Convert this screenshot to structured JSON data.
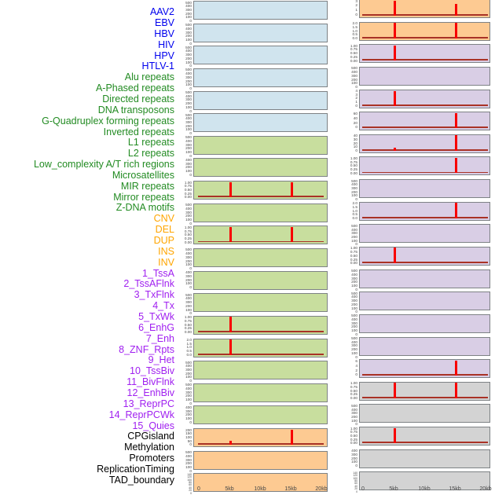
{
  "chart_data": {
    "type": "bar",
    "subtype": "genomic-feature-density-tracks",
    "layout": {
      "columns": 2,
      "order": "column-major",
      "left_column_features": "1-22",
      "right_column_features": "23-44",
      "grid": false,
      "legend": "none (labels colored by feature group)"
    },
    "x_axis": {
      "tick_labels": [
        "0",
        "5kb",
        "10kb",
        "15kb",
        "20kb"
      ],
      "tick_kb": [
        0,
        5,
        10,
        15,
        20
      ],
      "range_kb": [
        0,
        20
      ]
    },
    "spike_units": "fraction_of_panel_max_height",
    "palette": {
      "virus": {
        "label": "#0000EE",
        "panel": "#D0E4EE"
      },
      "repeat": {
        "label": "#228B22",
        "panel": "#C8DE9E"
      },
      "structural_variant": {
        "label": "#FFA500",
        "panel": "#FDCA92"
      },
      "chromatin_state": {
        "label": "#A020F0",
        "panel": "#D9CEE5"
      },
      "other": {
        "label": "#000000",
        "panel": "#D3D3D3"
      }
    },
    "spike_color": "#F80000",
    "baseline_color": "#A93226",
    "panel_border_color": "#7E8285",
    "features": [
      {
        "label": "AAV2",
        "group": "virus",
        "y_ticks": [
          "500",
          "400",
          "300",
          "200",
          "100",
          "0"
        ],
        "spikes": []
      },
      {
        "label": "EBV",
        "group": "virus",
        "y_ticks": [
          "500",
          "400",
          "300",
          "200",
          "100",
          "0"
        ],
        "spikes": []
      },
      {
        "label": "HBV",
        "group": "virus",
        "y_ticks": [
          "500",
          "400",
          "300",
          "200",
          "100",
          "0"
        ],
        "spikes": []
      },
      {
        "label": "HIV",
        "group": "virus",
        "y_ticks": [
          "500",
          "400",
          "300",
          "200",
          "100",
          "0"
        ],
        "spikes": []
      },
      {
        "label": "HPV",
        "group": "virus",
        "y_ticks": [
          "500",
          "400",
          "300",
          "200",
          "100",
          "0"
        ],
        "spikes": []
      },
      {
        "label": "HTLV-1",
        "group": "virus",
        "y_ticks": [
          "500",
          "400",
          "300",
          "200",
          "100",
          "0"
        ],
        "spikes": []
      },
      {
        "label": "Alu repeats",
        "group": "repeat",
        "y_ticks": [
          "500",
          "400",
          "300",
          "200",
          "100",
          "0"
        ],
        "spikes": []
      },
      {
        "label": "A-Phased repeats",
        "group": "repeat",
        "y_ticks": [
          "400",
          "300",
          "200",
          "100",
          "0"
        ],
        "spikes": []
      },
      {
        "label": "Directed repeats",
        "group": "repeat",
        "y_ticks": [
          "1.00",
          "0.75",
          "0.50",
          "0.25",
          "0.00"
        ],
        "spikes": [
          {
            "kb": 5,
            "h": 1.0
          },
          {
            "kb": 15,
            "h": 1.0
          }
        ]
      },
      {
        "label": "DNA transposons",
        "group": "repeat",
        "y_ticks": [
          "500",
          "400",
          "300",
          "200",
          "100",
          "0"
        ],
        "spikes": []
      },
      {
        "label": "G-Quadruplex forming repeats",
        "group": "repeat",
        "y_ticks": [
          "1.00",
          "0.75",
          "0.50",
          "0.25",
          "0.00"
        ],
        "spikes": [
          {
            "kb": 5,
            "h": 1.0
          },
          {
            "kb": 15,
            "h": 1.0
          }
        ]
      },
      {
        "label": "Inverted repeats",
        "group": "repeat",
        "y_ticks": [
          "500",
          "400",
          "300",
          "200",
          "100",
          "0"
        ],
        "spikes": []
      },
      {
        "label": "L1 repeats",
        "group": "repeat",
        "y_ticks": [
          "400",
          "300",
          "200",
          "100",
          "0"
        ],
        "spikes": []
      },
      {
        "label": "L2 repeats",
        "group": "repeat",
        "y_ticks": [
          "500",
          "400",
          "300",
          "200",
          "100",
          "0"
        ],
        "spikes": []
      },
      {
        "label": "Low_complexity A/T rich regions",
        "group": "repeat",
        "y_ticks": [
          "1.00",
          "0.75",
          "0.50",
          "0.25",
          "0.00"
        ],
        "spikes": [
          {
            "kb": 5,
            "h": 1.0
          }
        ]
      },
      {
        "label": "Microsatellites",
        "group": "repeat",
        "y_ticks": [
          "2.0",
          "1.5",
          "1.0",
          "0.5",
          "0.0"
        ],
        "spikes": [
          {
            "kb": 5,
            "h": 1.0
          }
        ]
      },
      {
        "label": "MIR repeats",
        "group": "repeat",
        "y_ticks": [
          "500",
          "400",
          "300",
          "200",
          "100",
          "0"
        ],
        "spikes": []
      },
      {
        "label": "Mirror repeats",
        "group": "repeat",
        "y_ticks": [
          "500",
          "400",
          "300",
          "200",
          "100",
          "0"
        ],
        "spikes": []
      },
      {
        "label": "Z-DNA motifs",
        "group": "repeat",
        "y_ticks": [
          "400",
          "300",
          "200",
          "100",
          "0"
        ],
        "spikes": []
      },
      {
        "label": "CNV",
        "group": "structural_variant",
        "y_ticks": [
          "200",
          "150",
          "100",
          "50",
          "0"
        ],
        "spikes": [
          {
            "kb": 5,
            "h": 0.15
          },
          {
            "kb": 15,
            "h": 0.95
          }
        ]
      },
      {
        "label": "DEL",
        "group": "structural_variant",
        "y_ticks": [
          "500",
          "400",
          "300",
          "200",
          "100",
          "0"
        ],
        "spikes": []
      },
      {
        "label": "DUP",
        "group": "structural_variant",
        "y_ticks": [
          "140",
          "120",
          "100",
          "80",
          "60",
          "40",
          "20",
          "0"
        ],
        "spikes": []
      },
      {
        "label": "INS",
        "group": "structural_variant",
        "y_ticks": [
          "3",
          "2",
          "1",
          "0"
        ],
        "spikes": [
          {
            "kb": 5,
            "h": 1.0
          },
          {
            "kb": 15,
            "h": 0.72
          }
        ]
      },
      {
        "label": "INV",
        "group": "structural_variant",
        "y_ticks": [
          "2.0",
          "1.5",
          "1.0",
          "0.5",
          "0.0"
        ],
        "spikes": [
          {
            "kb": 5,
            "h": 1.0
          },
          {
            "kb": 15,
            "h": 1.0
          }
        ]
      },
      {
        "label": "1_TssA",
        "group": "chromatin_state",
        "y_ticks": [
          "1.00",
          "0.75",
          "0.50",
          "0.25",
          "0.00"
        ],
        "spikes": [
          {
            "kb": 5,
            "h": 1.0
          }
        ]
      },
      {
        "label": "2_TssAFlnk",
        "group": "chromatin_state",
        "y_ticks": [
          "500",
          "400",
          "300",
          "200",
          "100",
          "0"
        ],
        "spikes": []
      },
      {
        "label": "3_TxFlnk",
        "group": "chromatin_state",
        "y_ticks": [
          "4",
          "3",
          "2",
          "1",
          "0"
        ],
        "spikes": [
          {
            "kb": 5,
            "h": 0.95
          }
        ]
      },
      {
        "label": "4_Tx",
        "group": "chromatin_state",
        "y_ticks": [
          "60",
          "40",
          "20",
          "0"
        ],
        "spikes": [
          {
            "kb": 15,
            "h": 1.0
          }
        ]
      },
      {
        "label": "5_TxWk",
        "group": "chromatin_state",
        "y_ticks": [
          "40",
          "30",
          "20",
          "10",
          "0"
        ],
        "spikes": [
          {
            "kb": 5,
            "h": 0.1
          },
          {
            "kb": 15,
            "h": 1.0
          }
        ]
      },
      {
        "label": "6_EnhG",
        "group": "chromatin_state",
        "y_ticks": [
          "1.00",
          "0.75",
          "0.50",
          "0.25",
          "0.00"
        ],
        "spikes": [
          {
            "kb": 15,
            "h": 1.0
          }
        ]
      },
      {
        "label": "7_Enh",
        "group": "chromatin_state",
        "y_ticks": [
          "500",
          "400",
          "300",
          "200",
          "100",
          "0"
        ],
        "spikes": []
      },
      {
        "label": "8_ZNF_Rpts",
        "group": "chromatin_state",
        "y_ticks": [
          "2.0",
          "1.5",
          "1.0",
          "0.5",
          "0.0"
        ],
        "spikes": [
          {
            "kb": 15,
            "h": 1.0
          }
        ]
      },
      {
        "label": "9_Het",
        "group": "chromatin_state",
        "y_ticks": [
          "500",
          "400",
          "300",
          "200",
          "100",
          "0"
        ],
        "spikes": []
      },
      {
        "label": "10_TssBiv",
        "group": "chromatin_state",
        "y_ticks": [
          "1.00",
          "0.75",
          "0.50",
          "0.25",
          "0.00"
        ],
        "spikes": [
          {
            "kb": 5,
            "h": 1.0
          }
        ]
      },
      {
        "label": "11_BivFlnk",
        "group": "chromatin_state",
        "y_ticks": [
          "500",
          "400",
          "300",
          "200",
          "100",
          "0"
        ],
        "spikes": []
      },
      {
        "label": "12_EnhBiv",
        "group": "chromatin_state",
        "y_ticks": [
          "500",
          "400",
          "300",
          "200",
          "100",
          "0"
        ],
        "spikes": []
      },
      {
        "label": "13_ReprPC",
        "group": "chromatin_state",
        "y_ticks": [
          "500",
          "400",
          "300",
          "200",
          "100",
          "0"
        ],
        "spikes": []
      },
      {
        "label": "14_ReprPCWk",
        "group": "chromatin_state",
        "y_ticks": [
          "500",
          "400",
          "300",
          "200",
          "100",
          "0"
        ],
        "spikes": []
      },
      {
        "label": "15_Quies",
        "group": "chromatin_state",
        "y_ticks": [
          "6",
          "4",
          "2",
          "0"
        ],
        "spikes": [
          {
            "kb": 15,
            "h": 1.0
          }
        ]
      },
      {
        "label": "CPGisland",
        "group": "other",
        "y_ticks": [
          "1.00",
          "0.75",
          "0.50",
          "0.25",
          "0.00"
        ],
        "spikes": [
          {
            "kb": 5,
            "h": 1.0
          },
          {
            "kb": 15,
            "h": 1.0
          }
        ]
      },
      {
        "label": "Methylation",
        "group": "other",
        "y_ticks": [
          "500",
          "400",
          "300",
          "200",
          "100",
          "0"
        ],
        "spikes": []
      },
      {
        "label": "Promoters",
        "group": "other",
        "y_ticks": [
          "1.00",
          "0.75",
          "0.50",
          "0.25",
          "0.00"
        ],
        "spikes": [
          {
            "kb": 5,
            "h": 1.0
          }
        ]
      },
      {
        "label": "ReplicationTiming",
        "group": "other",
        "y_ticks": [
          "400",
          "300",
          "200",
          "100",
          "0"
        ],
        "spikes": []
      },
      {
        "label": "TAD_boundary",
        "group": "other",
        "y_ticks": [
          "140",
          "120",
          "100",
          "80",
          "60",
          "40",
          "20",
          "0"
        ],
        "spikes": []
      }
    ]
  }
}
